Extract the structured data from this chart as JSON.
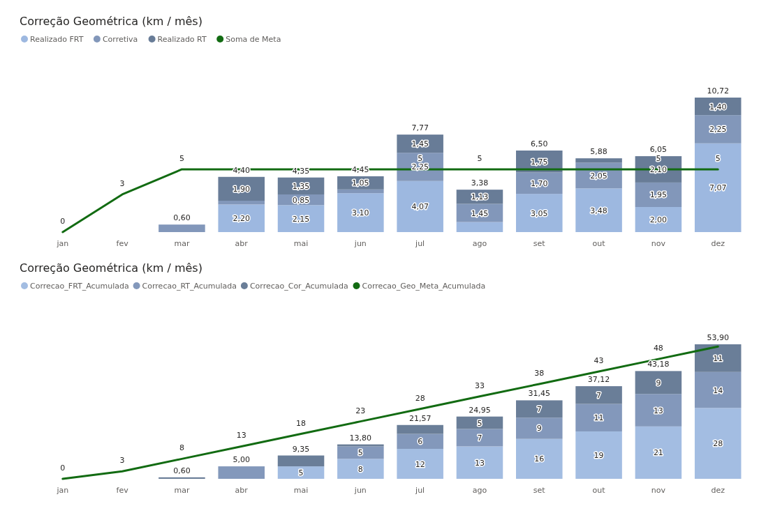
{
  "chart_data": [
    {
      "type": "bar",
      "title": "Correção Geométrica (km / mês)",
      "stacked": true,
      "legend": "top left",
      "categories": [
        "jan",
        "fev",
        "mar",
        "abr",
        "mai",
        "jun",
        "jul",
        "ago",
        "set",
        "out",
        "nov",
        "dez"
      ],
      "series": [
        {
          "name": "Realizado FRT",
          "color": "#9db8e0",
          "values": [
            null,
            null,
            null,
            2.2,
            2.15,
            3.1,
            4.07,
            0.8,
            3.05,
            3.48,
            2.0,
            7.07
          ],
          "value_labels": [
            null,
            null,
            null,
            "2,20",
            "2,15",
            "3,10",
            "4,07",
            null,
            "3,05",
            "3,48",
            "2,00",
            "7,07"
          ]
        },
        {
          "name": "Corretiva",
          "color": "#8297ba",
          "values": [
            null,
            null,
            0.6,
            0.3,
            0.85,
            0.3,
            2.25,
            1.45,
            1.7,
            2.05,
            1.95,
            2.25
          ],
          "value_labels": [
            null,
            null,
            null,
            null,
            "0,85",
            null,
            "2,25",
            "1,45",
            "1,70",
            "2,05",
            "1,95",
            "2,25"
          ]
        },
        {
          "name": "Realizado RT",
          "color": "#687c97",
          "values": [
            null,
            null,
            null,
            1.9,
            1.35,
            1.05,
            1.45,
            1.13,
            1.75,
            0.35,
            2.1,
            1.4
          ],
          "value_labels": [
            null,
            null,
            null,
            "1,90",
            "1,35",
            "1,05",
            "1,45",
            "1,13",
            "1,75",
            null,
            "2,10",
            "1,40"
          ]
        },
        {
          "name": "Soma de Meta",
          "type": "line",
          "color": "#126b12",
          "values": [
            0,
            3,
            5,
            5,
            5,
            5,
            5,
            5,
            5,
            5,
            5,
            5
          ],
          "value_labels": [
            "0",
            "3",
            "5",
            null,
            null,
            null,
            "5",
            "5",
            null,
            null,
            "5",
            "5"
          ]
        }
      ],
      "totals": [
        null,
        null,
        "0,60",
        "4,40",
        "4,35",
        "4,45",
        "7,77",
        "3,38",
        "6,50",
        "5,88",
        "6,05",
        "10,72"
      ]
    },
    {
      "type": "bar",
      "title": "Correção Geométrica (km / mês)",
      "stacked": true,
      "legend": "top left",
      "categories": [
        "jan",
        "fev",
        "mar",
        "abr",
        "mai",
        "jun",
        "jul",
        "ago",
        "set",
        "out",
        "nov",
        "dez"
      ],
      "series": [
        {
          "name": "Correcao_FRT_Acumulada",
          "color": "#a3bde2",
          "values": [
            null,
            null,
            null,
            null,
            5,
            8,
            12,
            13,
            16,
            19,
            21,
            28.4
          ],
          "value_labels": [
            null,
            null,
            null,
            null,
            "5",
            "8",
            "12",
            "13",
            "16",
            "19",
            "21",
            "28"
          ]
        },
        {
          "name": "Correcao_RT_Acumulada",
          "color": "#8398bb",
          "values": [
            null,
            null,
            null,
            5.0,
            null,
            5,
            6,
            7,
            8.5,
            11,
            13,
            14.4
          ],
          "value_labels": [
            null,
            null,
            null,
            null,
            null,
            "5",
            "6",
            "7",
            "9",
            "11",
            "13",
            "14"
          ]
        },
        {
          "name": "Correcao_Cor_Acumulada",
          "color": "#6a7e98",
          "values": [
            null,
            null,
            0.6,
            null,
            4.35,
            0.8,
            3.57,
            4.95,
            6.95,
            7.12,
            9.18,
            11.1
          ],
          "value_labels": [
            null,
            null,
            null,
            null,
            null,
            null,
            null,
            "5",
            "7",
            "7",
            "9",
            "11"
          ]
        },
        {
          "name": "Correcao_Geo_Meta_Acumulada",
          "type": "line",
          "color": "#126b12",
          "values": [
            0,
            3,
            8,
            13,
            18,
            23,
            28,
            33,
            38,
            43,
            48,
            53
          ],
          "value_labels": [
            "0",
            "3",
            "8",
            "13",
            "18",
            "23",
            "28",
            "33",
            "38",
            "43",
            "48",
            null
          ]
        }
      ],
      "totals": [
        null,
        null,
        "0,60",
        "5,00",
        "9,35",
        "13,80",
        "21,57",
        "24,95",
        "31,45",
        "37,12",
        "43,18",
        "53,90"
      ]
    }
  ]
}
